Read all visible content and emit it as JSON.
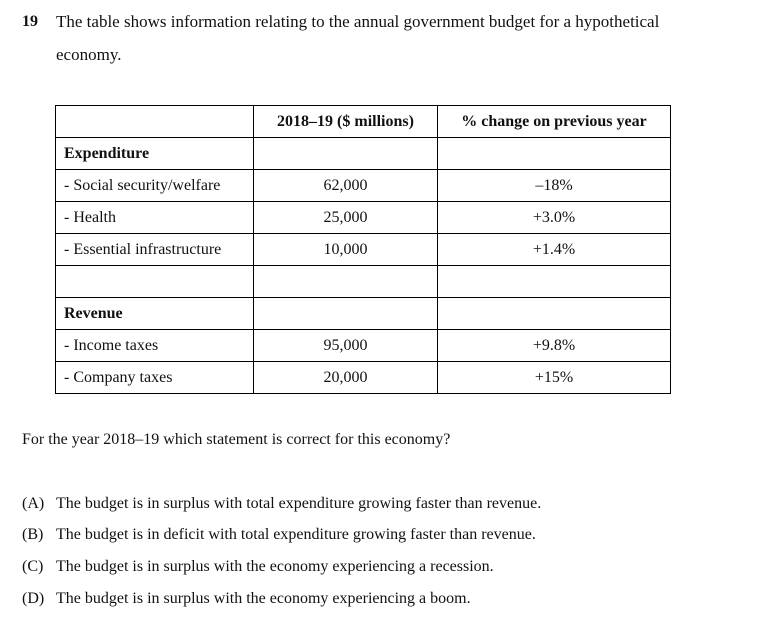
{
  "question": {
    "number": "19",
    "stem_line_1": "The table shows information relating to the annual government budget for a hypothetical",
    "stem_line_2": "economy."
  },
  "table": {
    "headers": [
      "",
      "2018–19 ($ millions)",
      "% change on previous year"
    ],
    "expenditure": {
      "title": "Expenditure",
      "rows": [
        {
          "label": "- Social security/welfare",
          "value": "62,000",
          "change": "–18%"
        },
        {
          "label": "- Health",
          "value": "25,000",
          "change": "+3.0%"
        },
        {
          "label": "- Essential infrastructure",
          "value": "10,000",
          "change": "+1.4%"
        }
      ]
    },
    "revenue": {
      "title": "Revenue",
      "rows": [
        {
          "label": "- Income taxes",
          "value": "95,000",
          "change": "+9.8%"
        },
        {
          "label": "- Company taxes",
          "value": "20,000",
          "change": "+15%"
        }
      ]
    }
  },
  "prompt": "For the year 2018–19 which statement is correct for this economy?",
  "options": [
    {
      "letter": "(A)",
      "text": "The budget is in surplus with total expenditure growing faster than revenue."
    },
    {
      "letter": "(B)",
      "text": "The budget is in deficit with total expenditure growing faster than revenue."
    },
    {
      "letter": "(C)",
      "text": "The budget is in surplus with the economy experiencing a recession."
    },
    {
      "letter": "(D)",
      "text": "The budget is in surplus with the economy experiencing a boom."
    }
  ]
}
